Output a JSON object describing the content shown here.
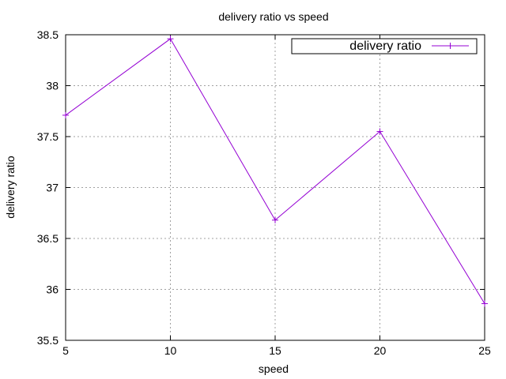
{
  "chart_data": {
    "type": "line",
    "title": "delivery ratio vs speed",
    "xlabel": "speed",
    "ylabel": "delivery ratio",
    "x": [
      5,
      10,
      15,
      20,
      25
    ],
    "xlim": [
      5,
      25
    ],
    "ylim": [
      35.5,
      38.5
    ],
    "xticks": [
      5,
      10,
      15,
      20,
      25
    ],
    "xtick_labels": [
      "5",
      "10",
      "15",
      "20",
      "25"
    ],
    "yticks": [
      35.5,
      36,
      36.5,
      37,
      37.5,
      38,
      38.5
    ],
    "ytick_labels": [
      "35.5",
      "36",
      "36.5",
      "37",
      "37.5",
      "38",
      "38.5"
    ],
    "grid": true,
    "legend_position": "top-right",
    "marker": "plus",
    "series": [
      {
        "name": "delivery ratio",
        "color": "#9400d3",
        "values": [
          37.71,
          38.46,
          36.68,
          37.55,
          35.86
        ]
      }
    ]
  }
}
